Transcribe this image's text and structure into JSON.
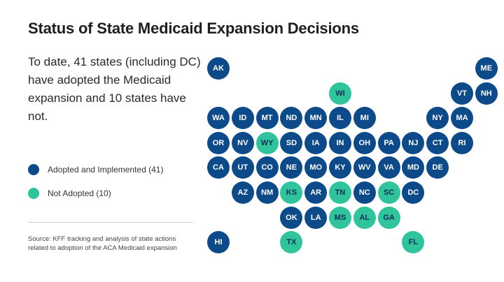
{
  "title": "Status of State Medicaid Expansion Decisions",
  "summary": "To date, 41 states (including DC) have adopted the Medicaid expansion and 10 states have not.",
  "colors": {
    "adopted": "#0c4a8a",
    "not_adopted": "#2fc49b"
  },
  "legend": [
    {
      "status": "adopted",
      "label": "Adopted and Implemented (41)"
    },
    {
      "status": "not_adopted",
      "label": "Not Adopted (10)"
    }
  ],
  "source": "Source: KFF tracking and analysis of state actions related to adoption of the ACA Medicaid expansion",
  "states": [
    {
      "abbr": "AK",
      "row": 0,
      "col": 0,
      "status": "adopted"
    },
    {
      "abbr": "ME",
      "row": 0,
      "col": 11,
      "status": "adopted"
    },
    {
      "abbr": "WI",
      "row": 1,
      "col": 5,
      "status": "not_adopted"
    },
    {
      "abbr": "VT",
      "row": 1,
      "col": 10,
      "status": "adopted"
    },
    {
      "abbr": "NH",
      "row": 1,
      "col": 11,
      "status": "adopted"
    },
    {
      "abbr": "WA",
      "row": 2,
      "col": 0,
      "status": "adopted"
    },
    {
      "abbr": "ID",
      "row": 2,
      "col": 1,
      "status": "adopted"
    },
    {
      "abbr": "MT",
      "row": 2,
      "col": 2,
      "status": "adopted"
    },
    {
      "abbr": "ND",
      "row": 2,
      "col": 3,
      "status": "adopted"
    },
    {
      "abbr": "MN",
      "row": 2,
      "col": 4,
      "status": "adopted"
    },
    {
      "abbr": "IL",
      "row": 2,
      "col": 5,
      "status": "adopted"
    },
    {
      "abbr": "MI",
      "row": 2,
      "col": 6,
      "status": "adopted"
    },
    {
      "abbr": "NY",
      "row": 2,
      "col": 9,
      "status": "adopted"
    },
    {
      "abbr": "MA",
      "row": 2,
      "col": 10,
      "status": "adopted"
    },
    {
      "abbr": "OR",
      "row": 3,
      "col": 0,
      "status": "adopted"
    },
    {
      "abbr": "NV",
      "row": 3,
      "col": 1,
      "status": "adopted"
    },
    {
      "abbr": "WY",
      "row": 3,
      "col": 2,
      "status": "not_adopted"
    },
    {
      "abbr": "SD",
      "row": 3,
      "col": 3,
      "status": "adopted"
    },
    {
      "abbr": "IA",
      "row": 3,
      "col": 4,
      "status": "adopted"
    },
    {
      "abbr": "IN",
      "row": 3,
      "col": 5,
      "status": "adopted"
    },
    {
      "abbr": "OH",
      "row": 3,
      "col": 6,
      "status": "adopted"
    },
    {
      "abbr": "PA",
      "row": 3,
      "col": 7,
      "status": "adopted"
    },
    {
      "abbr": "NJ",
      "row": 3,
      "col": 8,
      "status": "adopted"
    },
    {
      "abbr": "CT",
      "row": 3,
      "col": 9,
      "status": "adopted"
    },
    {
      "abbr": "RI",
      "row": 3,
      "col": 10,
      "status": "adopted"
    },
    {
      "abbr": "CA",
      "row": 4,
      "col": 0,
      "status": "adopted"
    },
    {
      "abbr": "UT",
      "row": 4,
      "col": 1,
      "status": "adopted"
    },
    {
      "abbr": "CO",
      "row": 4,
      "col": 2,
      "status": "adopted"
    },
    {
      "abbr": "NE",
      "row": 4,
      "col": 3,
      "status": "adopted"
    },
    {
      "abbr": "MO",
      "row": 4,
      "col": 4,
      "status": "adopted"
    },
    {
      "abbr": "KY",
      "row": 4,
      "col": 5,
      "status": "adopted"
    },
    {
      "abbr": "WV",
      "row": 4,
      "col": 6,
      "status": "adopted"
    },
    {
      "abbr": "VA",
      "row": 4,
      "col": 7,
      "status": "adopted"
    },
    {
      "abbr": "MD",
      "row": 4,
      "col": 8,
      "status": "adopted"
    },
    {
      "abbr": "DE",
      "row": 4,
      "col": 9,
      "status": "adopted"
    },
    {
      "abbr": "AZ",
      "row": 5,
      "col": 1,
      "status": "adopted"
    },
    {
      "abbr": "NM",
      "row": 5,
      "col": 2,
      "status": "adopted"
    },
    {
      "abbr": "KS",
      "row": 5,
      "col": 3,
      "status": "not_adopted"
    },
    {
      "abbr": "AR",
      "row": 5,
      "col": 4,
      "status": "adopted"
    },
    {
      "abbr": "TN",
      "row": 5,
      "col": 5,
      "status": "not_adopted"
    },
    {
      "abbr": "NC",
      "row": 5,
      "col": 6,
      "status": "adopted"
    },
    {
      "abbr": "SC",
      "row": 5,
      "col": 7,
      "status": "not_adopted"
    },
    {
      "abbr": "DC",
      "row": 5,
      "col": 8,
      "status": "adopted"
    },
    {
      "abbr": "OK",
      "row": 6,
      "col": 3,
      "status": "adopted"
    },
    {
      "abbr": "LA",
      "row": 6,
      "col": 4,
      "status": "adopted"
    },
    {
      "abbr": "MS",
      "row": 6,
      "col": 5,
      "status": "not_adopted"
    },
    {
      "abbr": "AL",
      "row": 6,
      "col": 6,
      "status": "not_adopted"
    },
    {
      "abbr": "GA",
      "row": 6,
      "col": 7,
      "status": "not_adopted"
    },
    {
      "abbr": "HI",
      "row": 7,
      "col": 0,
      "status": "adopted"
    },
    {
      "abbr": "TX",
      "row": 7,
      "col": 3,
      "status": "not_adopted"
    },
    {
      "abbr": "FL",
      "row": 7,
      "col": 8,
      "status": "not_adopted"
    }
  ]
}
